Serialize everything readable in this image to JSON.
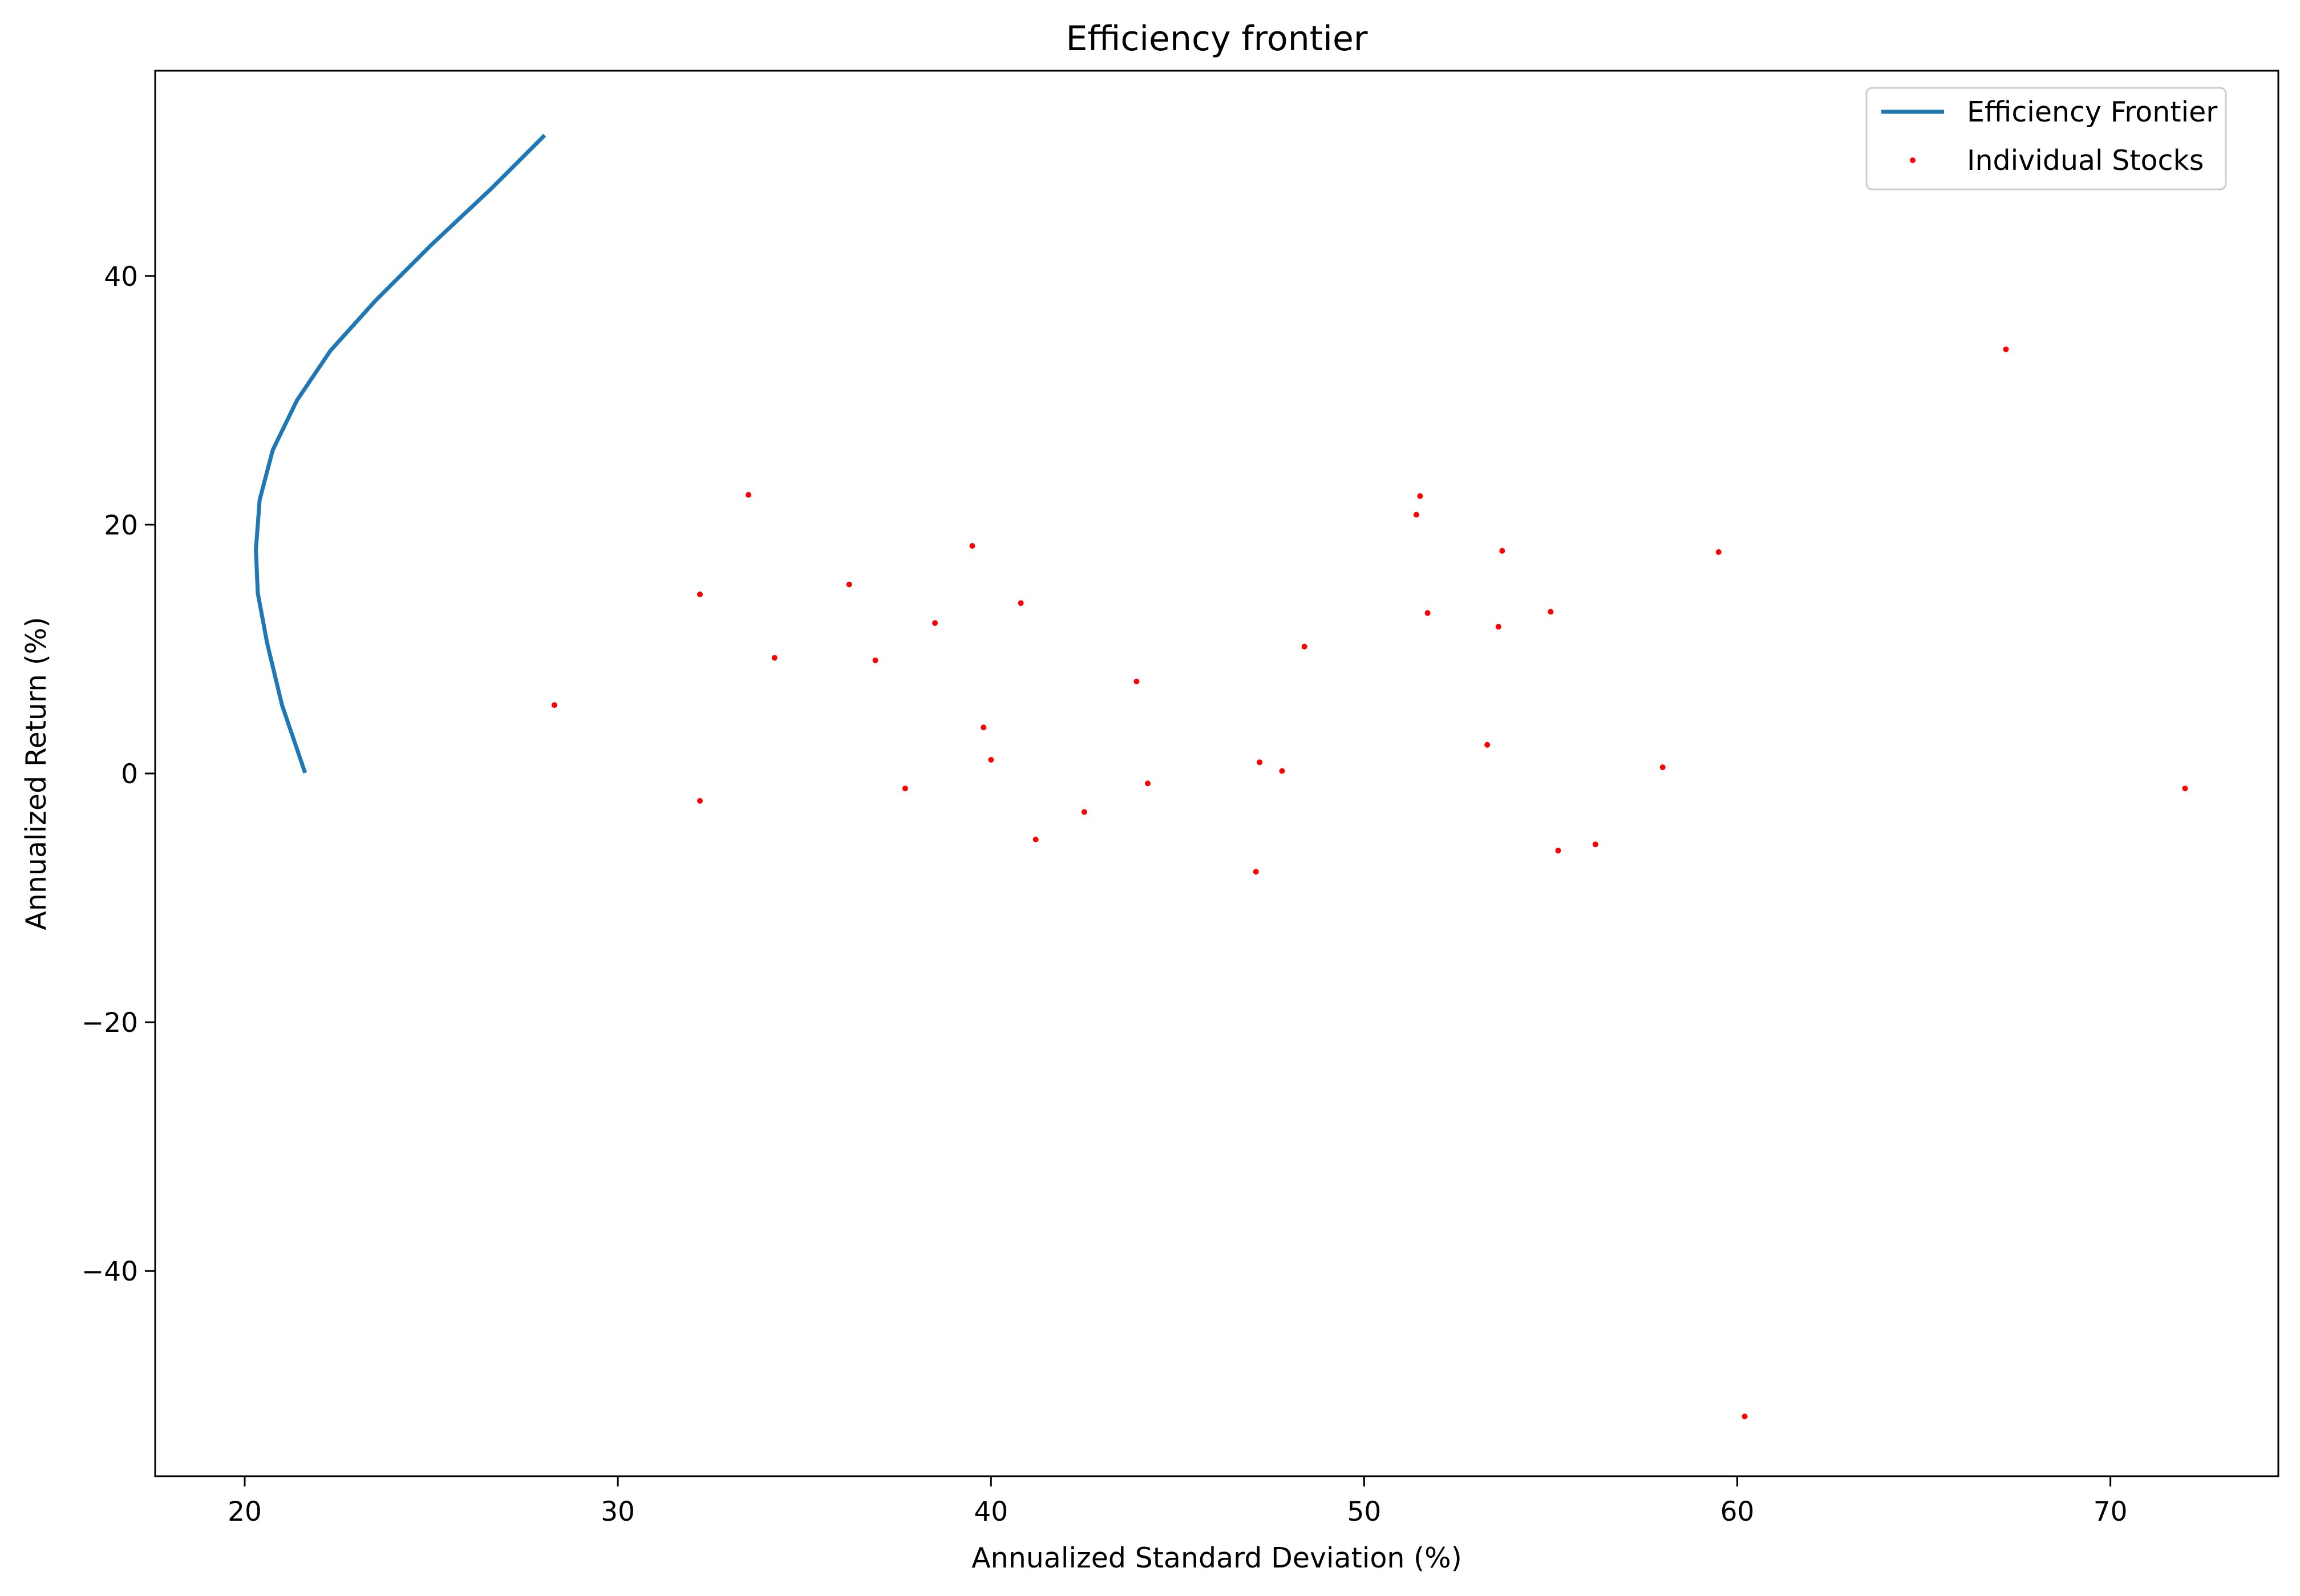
{
  "chart_data": {
    "type": "line+scatter",
    "title": "Efficiency frontier",
    "xlabel": "Annualized Standard Deviation (%)",
    "ylabel": "Annualized Return (%)",
    "xlim": [
      17.6,
      74.5
    ],
    "ylim": [
      -56.5,
      56.5
    ],
    "xticks": [
      20,
      30,
      40,
      50,
      60,
      70
    ],
    "yticks": [
      -40,
      -20,
      0,
      20,
      40
    ],
    "xtick_labels": [
      "20",
      "30",
      "40",
      "50",
      "60",
      "70"
    ],
    "ytick_labels": [
      "−40",
      "−20",
      "0",
      "20",
      "40"
    ],
    "grid": false,
    "legend_position": "top-right",
    "colors": {
      "frontier": "#1f77b4",
      "stocks": "#ff0000"
    },
    "series": [
      {
        "name": "Efficiency Frontier",
        "type": "line",
        "x": [
          21.6,
          21.0,
          20.6,
          20.35,
          20.3,
          20.4,
          20.75,
          21.4,
          22.3,
          23.5,
          25.0,
          26.6,
          28.0
        ],
        "y": [
          0.2,
          5.5,
          10.5,
          14.5,
          18.0,
          22.0,
          26.0,
          30.0,
          34.0,
          38.0,
          42.5,
          47.0,
          51.2
        ]
      },
      {
        "name": "Individual Stocks",
        "type": "scatter",
        "x": [
          28.3,
          32.2,
          32.2,
          33.5,
          34.2,
          36.2,
          36.9,
          37.7,
          38.5,
          39.5,
          39.8,
          40.0,
          40.8,
          41.2,
          42.5,
          43.9,
          44.2,
          47.1,
          47.2,
          47.8,
          48.4,
          51.4,
          51.5,
          51.7,
          53.3,
          53.6,
          53.7,
          55.0,
          55.2,
          56.2,
          58.0,
          59.5,
          60.2,
          67.2,
          72.0
        ],
        "y": [
          5.5,
          14.4,
          -2.2,
          22.4,
          9.3,
          15.2,
          9.1,
          -1.2,
          12.1,
          18.3,
          3.7,
          1.1,
          13.7,
          -5.3,
          -3.1,
          7.4,
          -0.8,
          -7.9,
          0.9,
          0.2,
          10.2,
          20.8,
          22.3,
          12.9,
          2.3,
          11.8,
          17.9,
          13.0,
          -6.2,
          -5.7,
          0.5,
          17.8,
          -51.7,
          34.1,
          -1.2
        ]
      }
    ]
  }
}
